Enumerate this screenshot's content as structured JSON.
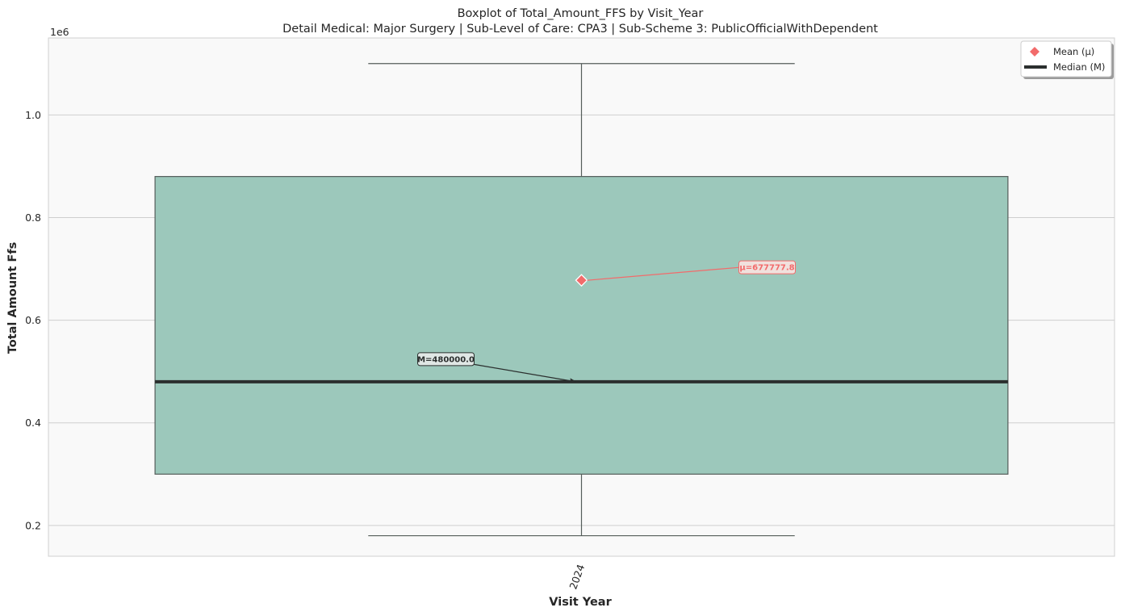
{
  "chart_data": {
    "type": "box",
    "title": "Boxplot of Total_Amount_FFS by Visit_Year",
    "subtitle": "Detail Medical: Major Surgery | Sub-Level of Care: CPA3 | Sub-Scheme 3: PublicOfficialWithDependent",
    "xlabel": "Visit Year",
    "ylabel": "Total Amount Ffs",
    "y_offset_label": "1e6",
    "ylim": [
      140000,
      1150000
    ],
    "y_ticks": [
      200000,
      400000,
      600000,
      800000,
      1000000
    ],
    "y_tick_labels": [
      "0.2",
      "0.4",
      "0.6",
      "0.8",
      "1.0"
    ],
    "grid": true,
    "legend_position": "top-right",
    "categories": [
      "2024"
    ],
    "boxes": [
      {
        "category": "2024",
        "whisker_low": 180000,
        "q1": 300000,
        "median": 480000,
        "q3": 880000,
        "whisker_high": 1100000,
        "mean": 677777.8
      }
    ],
    "annotations": {
      "mean_label": "μ=677777.8",
      "median_label": "M=480000.0"
    },
    "legend": [
      {
        "key": "mean",
        "label": "Mean (μ)"
      },
      {
        "key": "median",
        "label": "Median (M)"
      }
    ],
    "colors": {
      "box_fill": "#9cc8bb",
      "box_edge": "#555d5a",
      "median": "#2b2f2e",
      "mean": "#f26b6b",
      "plot_bg": "#f9f9f9",
      "grid": "#cfcfcf"
    }
  }
}
